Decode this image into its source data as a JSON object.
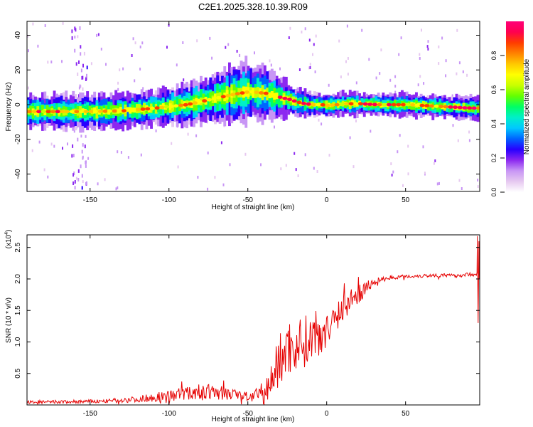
{
  "title": "C2E1.2025.328.10.39.R09",
  "chart_data": [
    {
      "type": "heatmap",
      "xlabel": "Height of straight line (km)",
      "ylabel": "Frequency (Hz)",
      "xlim": [
        -190,
        97
      ],
      "ylim": [
        -50,
        48
      ],
      "x_ticks": [
        -150,
        -100,
        -50,
        0,
        50
      ],
      "y_ticks": [
        -40,
        -20,
        0,
        20,
        40
      ],
      "ridge": {
        "x": [
          -190,
          -170,
          -150,
          -130,
          -110,
          -100,
          -90,
          -80,
          -70,
          -60,
          -50,
          -45,
          -40,
          -35,
          -30,
          -25,
          -20,
          -15,
          -10,
          -5,
          0,
          10,
          20,
          30,
          40,
          50,
          60,
          70,
          80,
          90,
          97
        ],
        "y": [
          -4,
          -4,
          -4,
          -3.5,
          -2,
          -1,
          0,
          2,
          4,
          6,
          7.5,
          7,
          6.5,
          5.5,
          4,
          3,
          1.5,
          0.5,
          0,
          0,
          -0.5,
          0.5,
          0.5,
          0,
          0,
          0,
          -0.5,
          -1,
          -1.5,
          -2,
          -2
        ],
        "spread": [
          3,
          3,
          3,
          3,
          3,
          3.2,
          3.5,
          4,
          4.5,
          5,
          5.5,
          5,
          4.5,
          4,
          3.5,
          3,
          2.5,
          2.2,
          2,
          2,
          2,
          2,
          2,
          2,
          2,
          2,
          2,
          2,
          2,
          2,
          2
        ]
      },
      "colorbar": {
        "label": "Normalized spectral amplitude",
        "range": [
          0,
          1
        ],
        "ticks": [
          "0.0",
          "0.2",
          "0.4",
          "0.6",
          "0.8"
        ],
        "tick_values": [
          0,
          0.2,
          0.4,
          0.6,
          0.8
        ],
        "colors": [
          "#ffffff",
          "#e6c8f0",
          "#c896f5",
          "#8c28f0",
          "#2800ff",
          "#0064ff",
          "#00c8ff",
          "#00f0c8",
          "#00ff64",
          "#64ff00",
          "#c8ff00",
          "#ffff00",
          "#ffc800",
          "#ff8200",
          "#ff3c00",
          "#ff0050",
          "#ff0078"
        ]
      }
    },
    {
      "type": "line",
      "xlabel": "Height of straight line (km)",
      "ylabel": "SNR (10 * v/v)",
      "scale_label": "(x10",
      "scale_exp": "4",
      "scale_close": ")",
      "xlim": [
        -190,
        97
      ],
      "ylim": [
        0,
        2.7
      ],
      "x_ticks": [
        -150,
        -100,
        -50,
        0,
        50
      ],
      "y_ticks": [
        0.5,
        1.0,
        1.5,
        2.0,
        2.5
      ],
      "y_tick_labels": [
        "0.5",
        "1.0",
        "1.5",
        "2.0",
        "2.5"
      ],
      "color": "#e60000",
      "series": {
        "x": [
          -190,
          -160,
          -140,
          -120,
          -110,
          -100,
          -90,
          -80,
          -70,
          -60,
          -50,
          -40,
          -35,
          -30,
          -25,
          -20,
          -15,
          -10,
          -5,
          0,
          5,
          10,
          15,
          20,
          25,
          30,
          35,
          40,
          50,
          60,
          70,
          80,
          90,
          95
        ],
        "y": [
          0.04,
          0.05,
          0.06,
          0.09,
          0.12,
          0.15,
          0.18,
          0.2,
          0.2,
          0.17,
          0.13,
          0.15,
          0.4,
          0.7,
          0.9,
          0.95,
          1.0,
          1.05,
          1.12,
          1.25,
          1.4,
          1.55,
          1.65,
          1.75,
          1.85,
          1.95,
          2.0,
          2.02,
          2.04,
          2.05,
          2.06,
          2.05,
          2.07,
          2.08
        ],
        "noise": [
          0.03,
          0.03,
          0.03,
          0.05,
          0.07,
          0.09,
          0.11,
          0.13,
          0.12,
          0.1,
          0.08,
          0.15,
          0.3,
          0.45,
          0.45,
          0.45,
          0.42,
          0.4,
          0.35,
          0.32,
          0.28,
          0.25,
          0.2,
          0.15,
          0.1,
          0.06,
          0.04,
          0.03,
          0.03,
          0.03,
          0.03,
          0.03,
          0.03,
          0.03
        ]
      }
    }
  ]
}
